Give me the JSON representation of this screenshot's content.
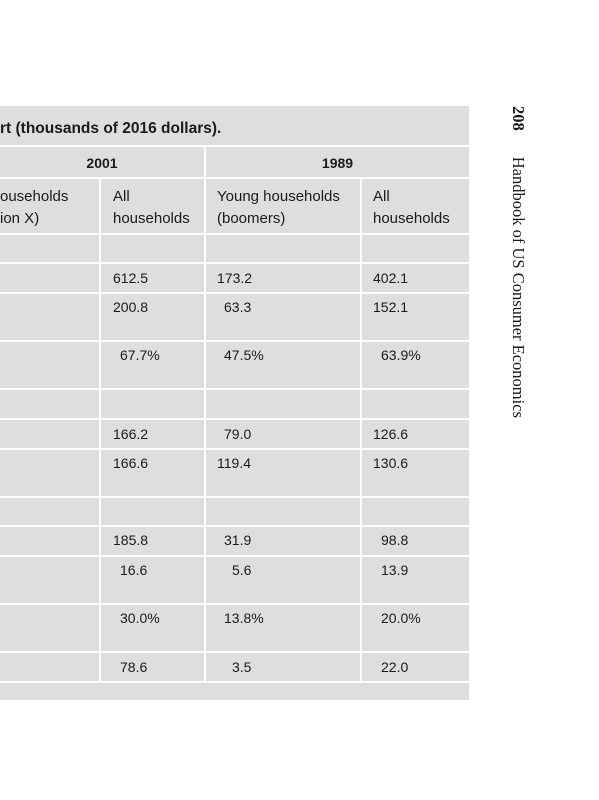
{
  "table": {
    "caption": "rt (thousands of 2016 dollars).",
    "year_2001": "2001",
    "year_1989": "1989",
    "col_headers": {
      "c1": "ouseholds\nion X)",
      "c2": "All\nhouseholds",
      "c3": "Young households\n(boomers)",
      "c4": "All\nhouseholds"
    },
    "rows": [
      [
        "612.5",
        "173.2",
        "402.1"
      ],
      [
        "200.8",
        "63.3",
        "152.1"
      ],
      [
        "67.7%",
        "47.5%",
        "63.9%"
      ],
      [
        "166.2",
        "79.0",
        "126.6"
      ],
      [
        "166.6",
        "119.4",
        "130.6"
      ],
      [
        "185.8",
        "31.9",
        "98.8"
      ],
      [
        "16.6",
        "5.6",
        "13.9"
      ],
      [
        "30.0%",
        "13.8%",
        "20.0%"
      ],
      [
        "78.6",
        "3.5",
        "22.0"
      ]
    ]
  },
  "running_head": {
    "page_number": "208",
    "book_title": "Handbook of US Consumer Economics"
  }
}
